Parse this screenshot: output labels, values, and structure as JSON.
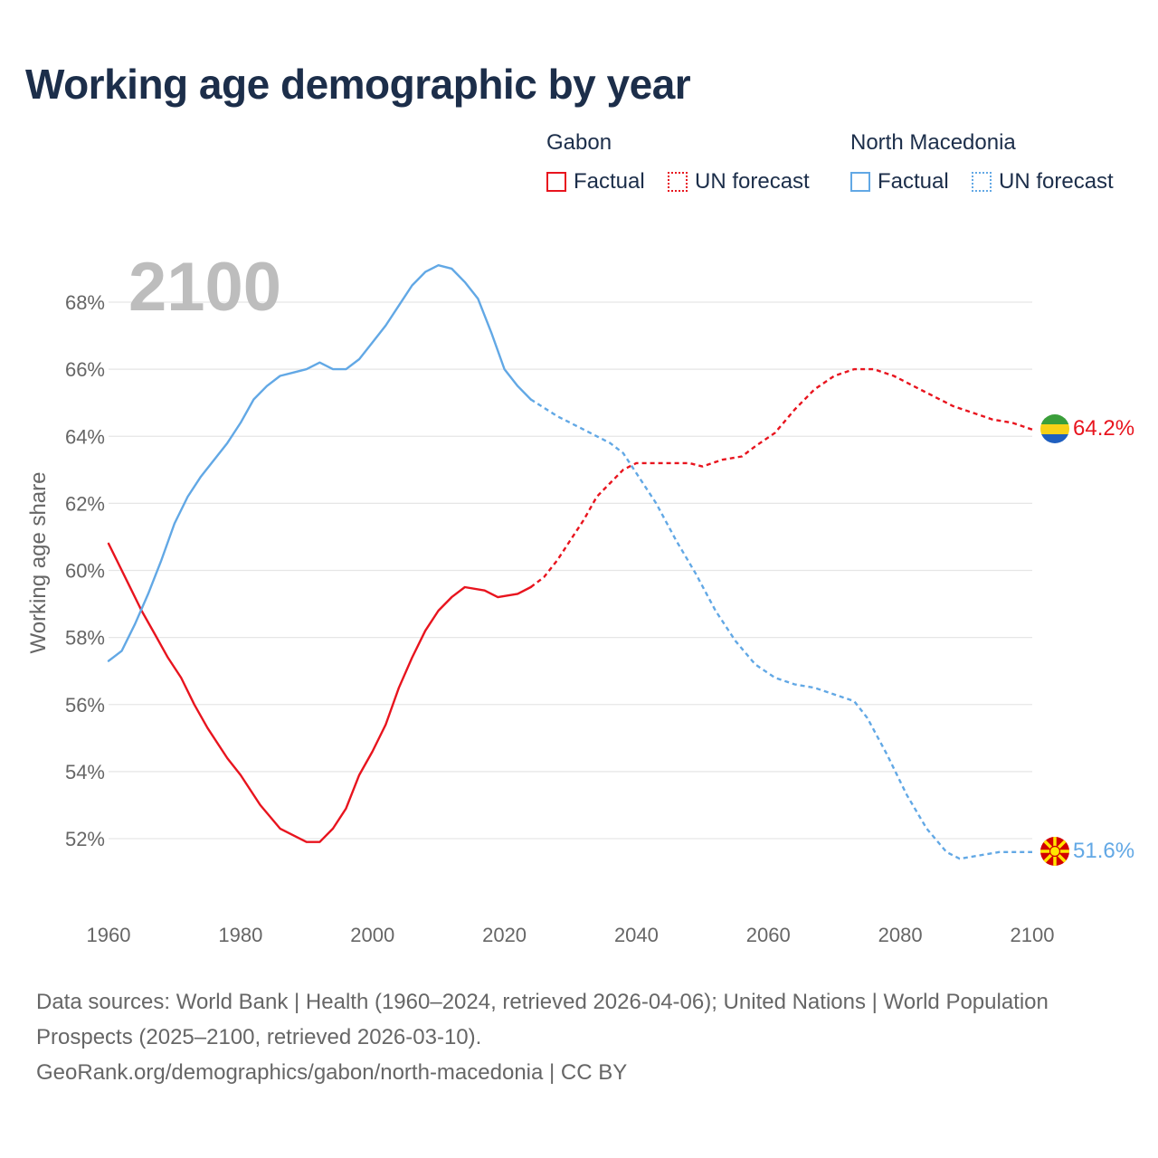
{
  "title": "Working age demographic by year",
  "legend": {
    "groups": [
      {
        "name": "Gabon",
        "color": "#e8141e",
        "factual_label": "Factual",
        "forecast_label": "UN forecast"
      },
      {
        "name": "North Macedonia",
        "color": "#62a8e5",
        "factual_label": "Factual",
        "forecast_label": "UN forecast"
      }
    ]
  },
  "year_watermark": "2100",
  "end_labels": {
    "gabon": "64.2%",
    "north_macedonia": "51.6%"
  },
  "sources": {
    "line1": "Data sources: World Bank | Health (1960–2024, retrieved 2026-04-06); United Nations | World Population Prospects (2025–2100, retrieved 2026-03-10).",
    "line2": "GeoRank.org/demographics/gabon/north-macedonia | CC BY"
  },
  "chart_data": {
    "type": "line",
    "ylabel": "Working age share",
    "xlabel": "",
    "xlim": [
      1960,
      2100
    ],
    "ylim": [
      50,
      70
    ],
    "x_ticks": [
      1960,
      1980,
      2000,
      2020,
      2040,
      2060,
      2080,
      2100
    ],
    "y_ticks": [
      52,
      54,
      56,
      58,
      60,
      62,
      64,
      66,
      68
    ],
    "y_tick_labels": [
      "52%",
      "54%",
      "56%",
      "58%",
      "60%",
      "62%",
      "64%",
      "66%",
      "68%"
    ],
    "x_tick_labels": [
      "1960",
      "1980",
      "2000",
      "2020",
      "2040",
      "2060",
      "2080",
      "2100"
    ],
    "series": [
      {
        "name": "Gabon",
        "segment": "Factual",
        "color": "#e8141e",
        "style": "solid",
        "points": [
          [
            1960,
            60.8
          ],
          [
            1963,
            59.6
          ],
          [
            1965,
            58.8
          ],
          [
            1967,
            58.1
          ],
          [
            1969,
            57.4
          ],
          [
            1971,
            56.8
          ],
          [
            1973,
            56.0
          ],
          [
            1975,
            55.3
          ],
          [
            1978,
            54.4
          ],
          [
            1980,
            53.9
          ],
          [
            1983,
            53.0
          ],
          [
            1986,
            52.3
          ],
          [
            1990,
            51.9
          ],
          [
            1992,
            51.9
          ],
          [
            1994,
            52.3
          ],
          [
            1996,
            52.9
          ],
          [
            1998,
            53.9
          ],
          [
            2000,
            54.6
          ],
          [
            2002,
            55.4
          ],
          [
            2004,
            56.5
          ],
          [
            2006,
            57.4
          ],
          [
            2008,
            58.2
          ],
          [
            2010,
            58.8
          ],
          [
            2012,
            59.2
          ],
          [
            2014,
            59.5
          ],
          [
            2017,
            59.4
          ],
          [
            2019,
            59.2
          ],
          [
            2022,
            59.3
          ],
          [
            2024,
            59.5
          ]
        ]
      },
      {
        "name": "Gabon",
        "segment": "UN forecast",
        "color": "#e8141e",
        "style": "dashed",
        "points": [
          [
            2024,
            59.5
          ],
          [
            2026,
            59.8
          ],
          [
            2028,
            60.3
          ],
          [
            2030,
            60.9
          ],
          [
            2032,
            61.5
          ],
          [
            2034,
            62.2
          ],
          [
            2036,
            62.6
          ],
          [
            2038,
            63.0
          ],
          [
            2040,
            63.2
          ],
          [
            2045,
            63.2
          ],
          [
            2048,
            63.2
          ],
          [
            2050,
            63.1
          ],
          [
            2053,
            63.3
          ],
          [
            2056,
            63.4
          ],
          [
            2058,
            63.7
          ],
          [
            2061,
            64.1
          ],
          [
            2064,
            64.8
          ],
          [
            2067,
            65.4
          ],
          [
            2070,
            65.8
          ],
          [
            2073,
            66.0
          ],
          [
            2076,
            66.0
          ],
          [
            2079,
            65.8
          ],
          [
            2082,
            65.5
          ],
          [
            2085,
            65.2
          ],
          [
            2088,
            64.9
          ],
          [
            2091,
            64.7
          ],
          [
            2094,
            64.5
          ],
          [
            2097,
            64.4
          ],
          [
            2100,
            64.2
          ]
        ]
      },
      {
        "name": "North Macedonia",
        "segment": "Factual",
        "color": "#62a8e5",
        "style": "solid",
        "points": [
          [
            1960,
            57.3
          ],
          [
            1962,
            57.6
          ],
          [
            1964,
            58.4
          ],
          [
            1966,
            59.3
          ],
          [
            1968,
            60.3
          ],
          [
            1970,
            61.4
          ],
          [
            1972,
            62.2
          ],
          [
            1974,
            62.8
          ],
          [
            1976,
            63.3
          ],
          [
            1978,
            63.8
          ],
          [
            1980,
            64.4
          ],
          [
            1982,
            65.1
          ],
          [
            1984,
            65.5
          ],
          [
            1986,
            65.8
          ],
          [
            1988,
            65.9
          ],
          [
            1990,
            66.0
          ],
          [
            1992,
            66.2
          ],
          [
            1994,
            66.0
          ],
          [
            1996,
            66.0
          ],
          [
            1998,
            66.3
          ],
          [
            2000,
            66.8
          ],
          [
            2002,
            67.3
          ],
          [
            2004,
            67.9
          ],
          [
            2006,
            68.5
          ],
          [
            2008,
            68.9
          ],
          [
            2010,
            69.1
          ],
          [
            2012,
            69.0
          ],
          [
            2014,
            68.6
          ],
          [
            2016,
            68.1
          ],
          [
            2018,
            67.1
          ],
          [
            2020,
            66.0
          ],
          [
            2022,
            65.5
          ],
          [
            2024,
            65.1
          ]
        ]
      },
      {
        "name": "North Macedonia",
        "segment": "UN forecast",
        "color": "#62a8e5",
        "style": "dashed",
        "points": [
          [
            2024,
            65.1
          ],
          [
            2028,
            64.6
          ],
          [
            2032,
            64.2
          ],
          [
            2036,
            63.8
          ],
          [
            2038,
            63.5
          ],
          [
            2040,
            62.9
          ],
          [
            2043,
            62.0
          ],
          [
            2046,
            60.9
          ],
          [
            2049,
            59.9
          ],
          [
            2052,
            58.8
          ],
          [
            2055,
            57.9
          ],
          [
            2058,
            57.2
          ],
          [
            2061,
            56.8
          ],
          [
            2064,
            56.6
          ],
          [
            2067,
            56.5
          ],
          [
            2070,
            56.3
          ],
          [
            2073,
            56.1
          ],
          [
            2075,
            55.6
          ],
          [
            2078,
            54.5
          ],
          [
            2081,
            53.3
          ],
          [
            2084,
            52.3
          ],
          [
            2087,
            51.6
          ],
          [
            2089,
            51.4
          ],
          [
            2092,
            51.5
          ],
          [
            2095,
            51.6
          ],
          [
            2100,
            51.6
          ]
        ]
      }
    ]
  }
}
